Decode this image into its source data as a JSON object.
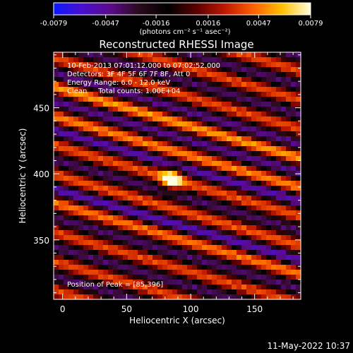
{
  "chart_data": {
    "type": "heatmap",
    "title": "Reconstructed RHESSI Image",
    "xlabel": "Heliocentric X (arcsec)",
    "ylabel": "Heliocentric Y (arcsec)",
    "xlim": [
      -7,
      186
    ],
    "ylim": [
      305,
      492
    ],
    "xticks": [
      0,
      50,
      100,
      150
    ],
    "yticks": [
      350,
      400,
      450
    ],
    "colorbar": {
      "min": -0.0079,
      "max": 0.0079,
      "ticks": [
        -0.0079,
        -0.0047,
        -0.0016,
        0.0016,
        0.0047,
        0.0079
      ],
      "tick_labels": [
        "-0.0079",
        "-0.0047",
        "-0.0016",
        "0.0016",
        "0.0047",
        "0.0079"
      ],
      "label": "(photons cm⁻² s⁻¹ asec⁻²)",
      "colors": [
        "#0a18ff",
        "#4a0fcc",
        "#5a0a8a",
        "#2a0a1a",
        "#000000",
        "#5a0000",
        "#c01800",
        "#ff6000",
        "#ffc000",
        "#ffffe0"
      ]
    },
    "stripes": {
      "slope": -0.28,
      "period_arcsec": 22,
      "phase_y": 396,
      "brighter_bands_y": [
        360,
        412,
        440
      ]
    },
    "peak": {
      "x": 85,
      "y": 396,
      "value": 0.0079
    },
    "annotations": [
      "10-Feb-2013 07:01:12.000 to 07:02:52.000",
      "Detectors: 3F 4F 5F 6F 7F 8F, Att 0",
      "Energy Range: 6.0 - 12.0 keV",
      "Clean     Total counts: 1.00E+04",
      "Position of Peak = [85,396]"
    ]
  },
  "footer": {
    "timestamp": "11-May-2022 10:37"
  }
}
